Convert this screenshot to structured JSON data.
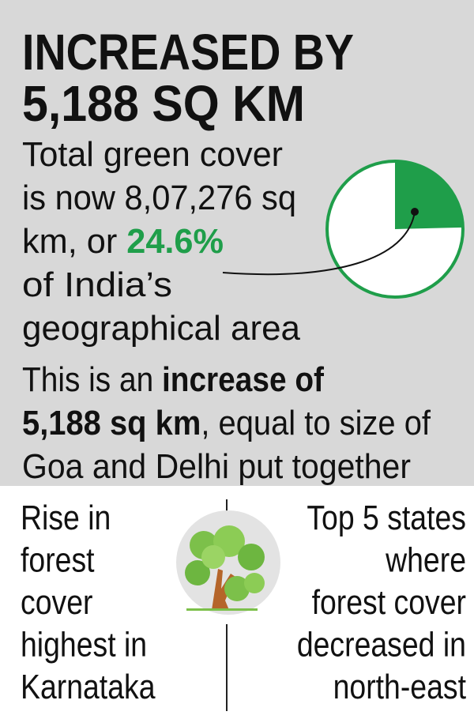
{
  "headline": [
    "INCREASED BY",
    "5,188 SQ KM"
  ],
  "summary": [
    "Total green cover",
    "is now 8,07,276 sq",
    "km, or ",
    "of India’s",
    "geographical area"
  ],
  "pie": {
    "value": 24.6,
    "label": "24.6%",
    "color": "#1f9e4a"
  },
  "increase": {
    "lead": "This is an ",
    "bold1": "increase of",
    "bold2": "5,188 sq km",
    "rest": ", equal to size of",
    "last": "Goa and Delhi put together"
  },
  "left": [
    "Rise in",
    "forest",
    "cover",
    "highest in",
    "Karnataka"
  ],
  "right": [
    "Top 5 states",
    "where",
    "forest cover",
    "decreased in",
    "north-east"
  ]
}
